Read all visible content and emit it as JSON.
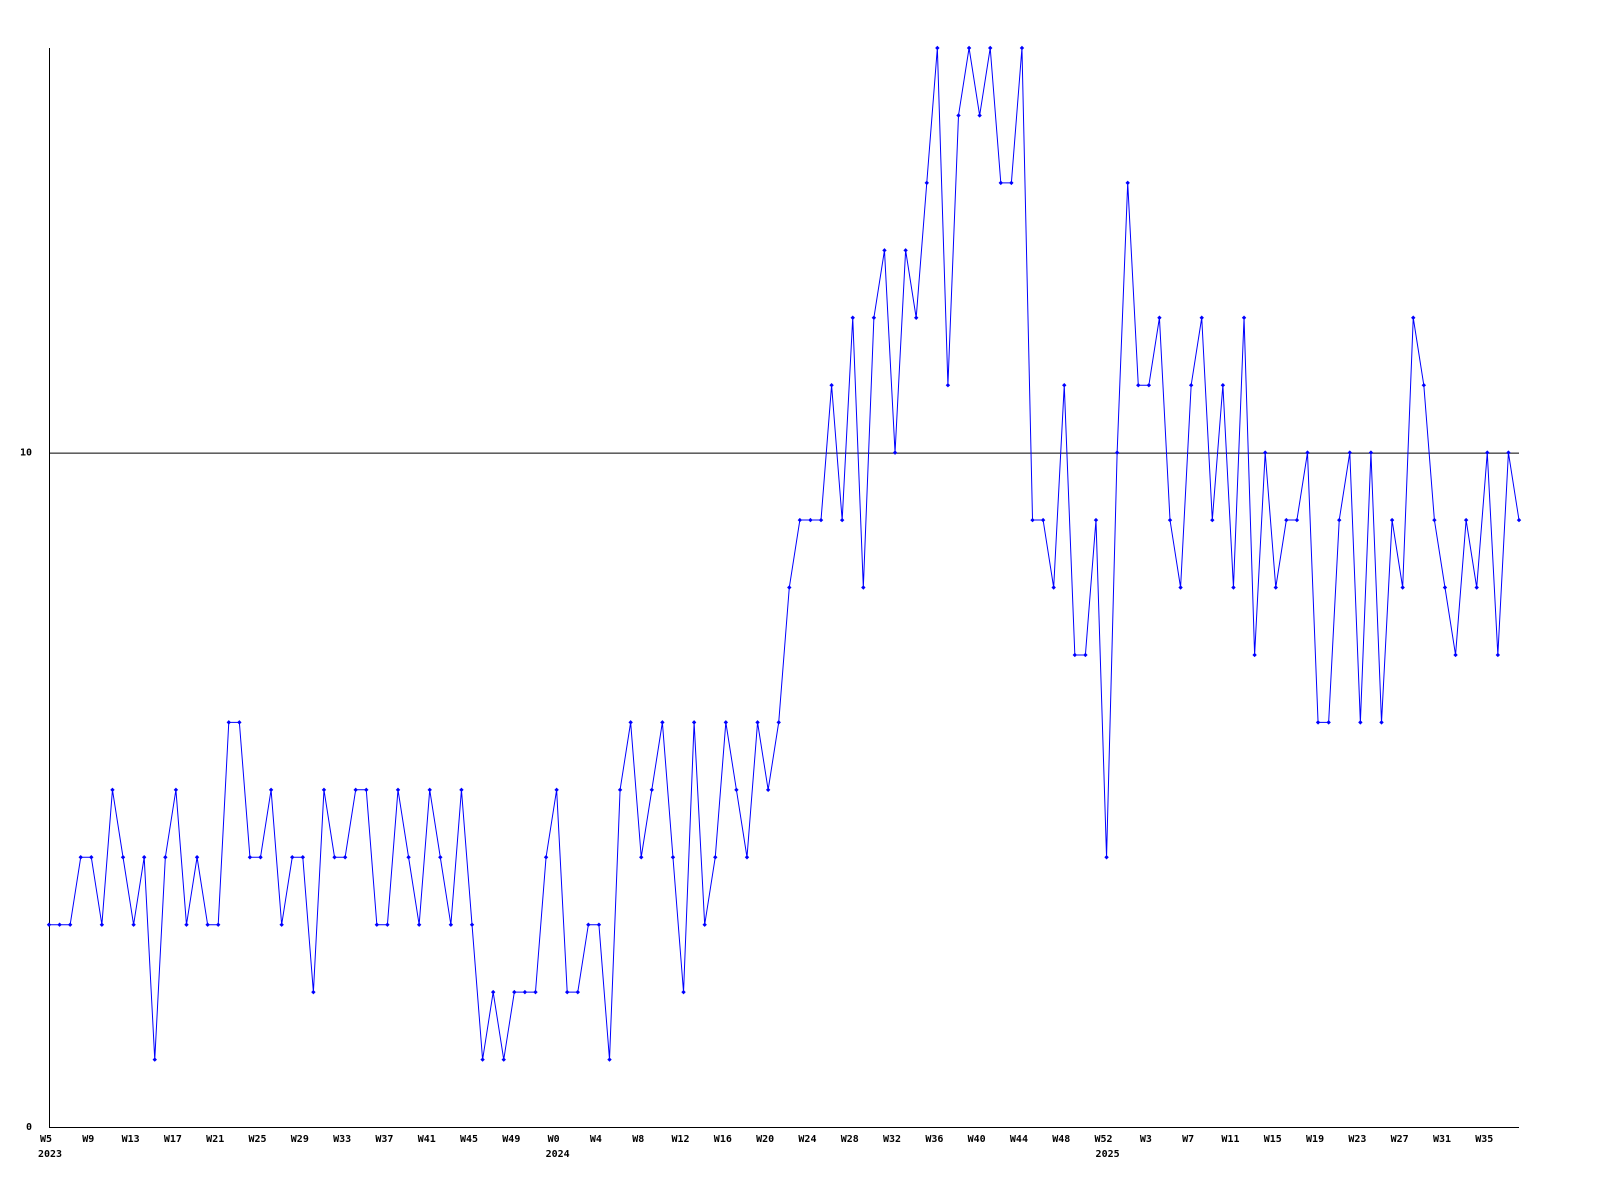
{
  "chart_data": {
    "type": "line",
    "categories": [
      "W5",
      null,
      null,
      null,
      "W9",
      null,
      null,
      null,
      "W13",
      null,
      null,
      null,
      "W17",
      null,
      null,
      null,
      "W21",
      null,
      null,
      null,
      "W25",
      null,
      null,
      null,
      "W29",
      null,
      null,
      null,
      "W33",
      null,
      null,
      null,
      "W37",
      null,
      null,
      null,
      "W41",
      null,
      null,
      null,
      "W45",
      null,
      null,
      null,
      "W49",
      null,
      null,
      null,
      "W0",
      null,
      null,
      null,
      "W4",
      null,
      null,
      null,
      "W8",
      null,
      null,
      null,
      "W12",
      null,
      null,
      null,
      "W16",
      null,
      null,
      null,
      "W20",
      null,
      null,
      null,
      "W24",
      null,
      null,
      null,
      "W28",
      null,
      null,
      null,
      "W32",
      null,
      null,
      null,
      "W36",
      null,
      null,
      null,
      "W40",
      null,
      null,
      null,
      "W44",
      null,
      null,
      null,
      "W48",
      null,
      null,
      null,
      "W52",
      null,
      null,
      null,
      "W3",
      null,
      null,
      null,
      "W7",
      null,
      null,
      null,
      "W11",
      null,
      null,
      null,
      "W15",
      null,
      null,
      null,
      "W19",
      null,
      null,
      null,
      "W23",
      null,
      null,
      null,
      "W27",
      null,
      null,
      null,
      "W31",
      null,
      null,
      null,
      "W35",
      null,
      null,
      null
    ],
    "years": [
      "2023",
      null,
      null,
      null,
      null,
      null,
      null,
      null,
      null,
      null,
      null,
      null,
      null,
      null,
      null,
      null,
      null,
      null,
      null,
      null,
      null,
      null,
      null,
      null,
      null,
      null,
      null,
      null,
      null,
      null,
      null,
      null,
      null,
      null,
      null,
      null,
      null,
      null,
      null,
      null,
      null,
      null,
      null,
      null,
      null,
      null,
      null,
      null,
      "2024",
      null,
      null,
      null,
      null,
      null,
      null,
      null,
      null,
      null,
      null,
      null,
      null,
      null,
      null,
      null,
      null,
      null,
      null,
      null,
      null,
      null,
      null,
      null,
      null,
      null,
      null,
      null,
      null,
      null,
      null,
      null,
      null,
      null,
      null,
      null,
      null,
      null,
      null,
      null,
      null,
      null,
      null,
      null,
      null,
      null,
      null,
      null,
      null,
      null,
      null,
      null,
      "2025",
      null,
      null,
      null,
      null,
      null,
      null,
      null,
      null,
      null,
      null,
      null,
      null,
      null,
      null,
      null,
      null,
      null,
      null,
      null,
      null,
      null,
      null,
      null,
      null,
      null,
      null,
      null,
      null,
      null,
      null,
      null,
      null,
      null,
      null,
      null,
      null,
      null,
      null
    ],
    "values": [
      3,
      3,
      3,
      4,
      4,
      3,
      5,
      4,
      3,
      4,
      1,
      4,
      5,
      3,
      4,
      3,
      3,
      6,
      6,
      4,
      4,
      5,
      3,
      4,
      4,
      2,
      5,
      4,
      4,
      5,
      5,
      3,
      3,
      5,
      4,
      3,
      5,
      4,
      3,
      5,
      3,
      1,
      2,
      1,
      2,
      2,
      2,
      4,
      5,
      2,
      2,
      3,
      3,
      1,
      5,
      6,
      4,
      5,
      6,
      4,
      2,
      6,
      3,
      4,
      6,
      5,
      4,
      6,
      5,
      6,
      8,
      9,
      9,
      9,
      11,
      9,
      12,
      8,
      12,
      13,
      10,
      13,
      12,
      14,
      16,
      11,
      15,
      16,
      15,
      16,
      14,
      14,
      16,
      9,
      9,
      8,
      11,
      7,
      7,
      9,
      4,
      10,
      14,
      11,
      11,
      12,
      9,
      8,
      11,
      12,
      9,
      11,
      8,
      12,
      7,
      10,
      8,
      9,
      9,
      10,
      6,
      6,
      9,
      10,
      6,
      10,
      6,
      9,
      8,
      12,
      11,
      9,
      8,
      7,
      9,
      8,
      10,
      7,
      10,
      9
    ],
    "color": "#0000ff",
    "ylim": [
      0,
      16
    ],
    "yticks": [
      0,
      10
    ],
    "grid": true
  }
}
